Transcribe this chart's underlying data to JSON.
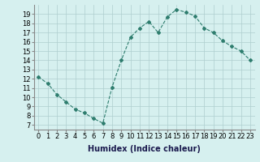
{
  "x": [
    0,
    1,
    2,
    3,
    4,
    5,
    6,
    7,
    8,
    9,
    10,
    11,
    12,
    13,
    14,
    15,
    16,
    17,
    18,
    19,
    20,
    21,
    22,
    23
  ],
  "y": [
    12.2,
    11.5,
    10.3,
    9.5,
    8.7,
    8.3,
    7.7,
    7.2,
    11.1,
    14.0,
    16.5,
    17.5,
    18.2,
    17.0,
    18.7,
    19.5,
    19.2,
    18.8,
    17.5,
    17.0,
    16.1,
    15.5,
    15.0,
    14.0
  ],
  "line_color": "#2e7d6e",
  "marker": "D",
  "marker_size": 2,
  "bg_color": "#d6f0ef",
  "grid_color": "#aecece",
  "xlabel": "Humidex (Indice chaleur)",
  "xlabel_fontsize": 7,
  "tick_fontsize": 6,
  "xlim": [
    -0.5,
    23.5
  ],
  "ylim": [
    6.5,
    20.0
  ],
  "yticks": [
    7,
    8,
    9,
    10,
    11,
    12,
    13,
    14,
    15,
    16,
    17,
    18,
    19
  ],
  "xticks": [
    0,
    1,
    2,
    3,
    4,
    5,
    6,
    7,
    8,
    9,
    10,
    11,
    12,
    13,
    14,
    15,
    16,
    17,
    18,
    19,
    20,
    21,
    22,
    23
  ]
}
